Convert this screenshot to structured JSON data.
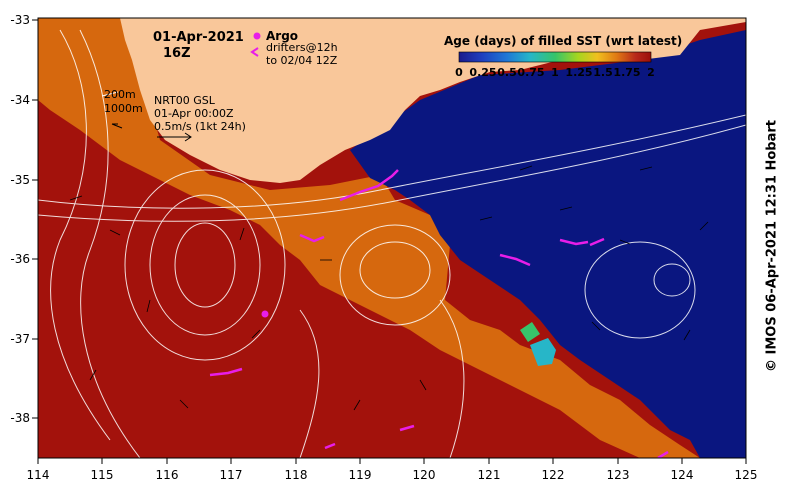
{
  "header": {
    "date": "01-Apr-2021",
    "time": "16Z"
  },
  "argo": {
    "label": "Argo",
    "drifters_label": "drifters@12h",
    "drifters_range": "to 02/04 12Z"
  },
  "info": {
    "depth_200": "200m",
    "depth_1000": "1000m",
    "product": "NRT00 GSL",
    "product_time": "01-Apr 00:00Z",
    "vector_scale": "0.5m/s (1kt 24h)"
  },
  "colorbar": {
    "title": "Age (days) of filled SST (wrt latest)",
    "ticks": [
      "0",
      "0.25",
      "0.5",
      "0.75",
      "1",
      "1.25",
      "1.5",
      "1.75",
      "2"
    ],
    "colors": [
      "#1a1a8c",
      "#1e3fbf",
      "#1f78d6",
      "#27b6c8",
      "#36c46a",
      "#a6d61f",
      "#f0c01f",
      "#e07a14",
      "#b8281a",
      "#9a0f0a"
    ]
  },
  "axes": {
    "x_ticks": [
      "114",
      "115",
      "116",
      "117",
      "118",
      "119",
      "120",
      "121",
      "122",
      "123",
      "124",
      "125"
    ],
    "y_ticks": [
      "-33",
      "-34",
      "-35",
      "-36",
      "-37",
      "-38"
    ]
  },
  "credit": "© IMOS 06-Apr-2021 12:31 Hobart",
  "colors": {
    "land": "#f9c79a",
    "deep_red": "#a3120c",
    "orange": "#d6680e",
    "navy": "#0a1680",
    "argo": "#e81ee8"
  }
}
